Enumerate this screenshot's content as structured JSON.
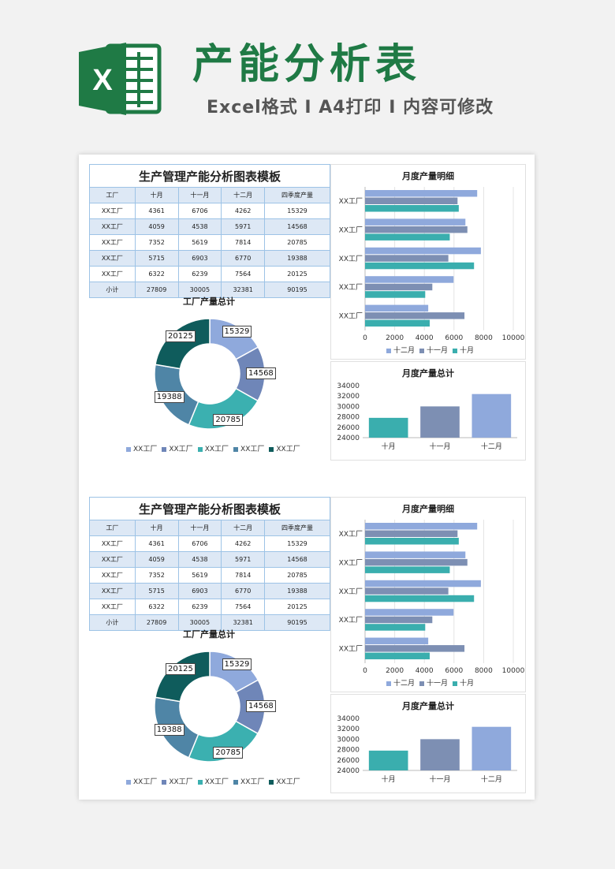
{
  "header": {
    "title": "产能分析表",
    "subtitle": "Excel格式 I A4打印 I 内容可修改",
    "logo_letter": "X"
  },
  "template": {
    "table_title": "生产管理产能分析图表模板",
    "columns": [
      "工厂",
      "十月",
      "十一月",
      "十二月",
      "四季度产量"
    ],
    "rows": [
      [
        "XX工厂",
        "4361",
        "6706",
        "4262",
        "15329"
      ],
      [
        "XX工厂",
        "4059",
        "4538",
        "5971",
        "14568"
      ],
      [
        "XX工厂",
        "7352",
        "5619",
        "7814",
        "20785"
      ],
      [
        "XX工厂",
        "5715",
        "6903",
        "6770",
        "19388"
      ],
      [
        "XX工厂",
        "6322",
        "6239",
        "7564",
        "20125"
      ],
      [
        "小计",
        "27809",
        "30005",
        "32381",
        "90195"
      ]
    ],
    "pie_title": "工厂产量总计",
    "bar_h_title": "月度产量明细",
    "bar_v_title": "月度产量总计"
  },
  "colors": {
    "green": "#1f7a45",
    "series": [
      "#8fa9dc",
      "#6f86b8",
      "#3bb0b0",
      "#4f85a6",
      "#0f5c5c"
    ],
    "dec": "#8fa9dc",
    "nov": "#7d8fb3",
    "oct": "#3aaeae"
  },
  "chart_data": [
    {
      "type": "pie",
      "title": "工厂产量总计",
      "categories": [
        "XX工厂",
        "XX工厂",
        "XX工厂",
        "XX工厂",
        "XX工厂"
      ],
      "values": [
        15329,
        14568,
        20785,
        19388,
        20125
      ],
      "legend": "bottom"
    },
    {
      "type": "bar",
      "orientation": "horizontal",
      "title": "月度产量明细",
      "categories": [
        "XX工厂",
        "XX工厂",
        "XX工厂",
        "XX工厂",
        "XX工厂"
      ],
      "series": [
        {
          "name": "十二月",
          "values": [
            7564,
            6770,
            7814,
            5971,
            4262
          ]
        },
        {
          "name": "十一月",
          "values": [
            6239,
            6903,
            5619,
            4538,
            6706
          ]
        },
        {
          "name": "十月",
          "values": [
            6322,
            5715,
            7352,
            4059,
            4361
          ]
        }
      ],
      "xlim": [
        0,
        10000
      ],
      "ticks": [
        "0",
        "2000",
        "4000",
        "6000",
        "8000",
        "10000"
      ],
      "legend": "bottom"
    },
    {
      "type": "bar",
      "title": "月度产量总计",
      "categories": [
        "十月",
        "十一月",
        "十二月"
      ],
      "values": [
        27809,
        30005,
        32381
      ],
      "ylim": [
        24000,
        34000
      ],
      "ticks": [
        "24000",
        "26000",
        "28000",
        "30000",
        "32000",
        "34000"
      ]
    }
  ]
}
